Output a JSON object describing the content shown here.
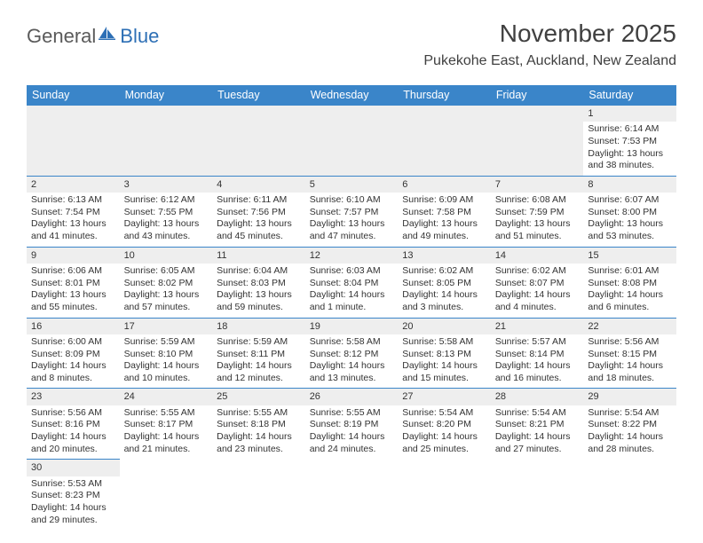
{
  "header": {
    "logo_part1": "General",
    "logo_part2": "Blue",
    "title": "November 2025",
    "subtitle": "Pukekohe East, Auckland, New Zealand"
  },
  "colors": {
    "header_bg": "#3a85c9",
    "header_fg": "#ffffff",
    "daynum_bg": "#eeeeee",
    "border": "#3a85c9",
    "text": "#333333",
    "logo_gray": "#5a5a5a",
    "logo_blue": "#2d6fb5"
  },
  "weekdays": [
    "Sunday",
    "Monday",
    "Tuesday",
    "Wednesday",
    "Thursday",
    "Friday",
    "Saturday"
  ],
  "days": [
    {
      "n": 1,
      "sunrise": "6:14 AM",
      "sunset": "7:53 PM",
      "daylight": "13 hours and 38 minutes."
    },
    {
      "n": 2,
      "sunrise": "6:13 AM",
      "sunset": "7:54 PM",
      "daylight": "13 hours and 41 minutes."
    },
    {
      "n": 3,
      "sunrise": "6:12 AM",
      "sunset": "7:55 PM",
      "daylight": "13 hours and 43 minutes."
    },
    {
      "n": 4,
      "sunrise": "6:11 AM",
      "sunset": "7:56 PM",
      "daylight": "13 hours and 45 minutes."
    },
    {
      "n": 5,
      "sunrise": "6:10 AM",
      "sunset": "7:57 PM",
      "daylight": "13 hours and 47 minutes."
    },
    {
      "n": 6,
      "sunrise": "6:09 AM",
      "sunset": "7:58 PM",
      "daylight": "13 hours and 49 minutes."
    },
    {
      "n": 7,
      "sunrise": "6:08 AM",
      "sunset": "7:59 PM",
      "daylight": "13 hours and 51 minutes."
    },
    {
      "n": 8,
      "sunrise": "6:07 AM",
      "sunset": "8:00 PM",
      "daylight": "13 hours and 53 minutes."
    },
    {
      "n": 9,
      "sunrise": "6:06 AM",
      "sunset": "8:01 PM",
      "daylight": "13 hours and 55 minutes."
    },
    {
      "n": 10,
      "sunrise": "6:05 AM",
      "sunset": "8:02 PM",
      "daylight": "13 hours and 57 minutes."
    },
    {
      "n": 11,
      "sunrise": "6:04 AM",
      "sunset": "8:03 PM",
      "daylight": "13 hours and 59 minutes."
    },
    {
      "n": 12,
      "sunrise": "6:03 AM",
      "sunset": "8:04 PM",
      "daylight": "14 hours and 1 minute."
    },
    {
      "n": 13,
      "sunrise": "6:02 AM",
      "sunset": "8:05 PM",
      "daylight": "14 hours and 3 minutes."
    },
    {
      "n": 14,
      "sunrise": "6:02 AM",
      "sunset": "8:07 PM",
      "daylight": "14 hours and 4 minutes."
    },
    {
      "n": 15,
      "sunrise": "6:01 AM",
      "sunset": "8:08 PM",
      "daylight": "14 hours and 6 minutes."
    },
    {
      "n": 16,
      "sunrise": "6:00 AM",
      "sunset": "8:09 PM",
      "daylight": "14 hours and 8 minutes."
    },
    {
      "n": 17,
      "sunrise": "5:59 AM",
      "sunset": "8:10 PM",
      "daylight": "14 hours and 10 minutes."
    },
    {
      "n": 18,
      "sunrise": "5:59 AM",
      "sunset": "8:11 PM",
      "daylight": "14 hours and 12 minutes."
    },
    {
      "n": 19,
      "sunrise": "5:58 AM",
      "sunset": "8:12 PM",
      "daylight": "14 hours and 13 minutes."
    },
    {
      "n": 20,
      "sunrise": "5:58 AM",
      "sunset": "8:13 PM",
      "daylight": "14 hours and 15 minutes."
    },
    {
      "n": 21,
      "sunrise": "5:57 AM",
      "sunset": "8:14 PM",
      "daylight": "14 hours and 16 minutes."
    },
    {
      "n": 22,
      "sunrise": "5:56 AM",
      "sunset": "8:15 PM",
      "daylight": "14 hours and 18 minutes."
    },
    {
      "n": 23,
      "sunrise": "5:56 AM",
      "sunset": "8:16 PM",
      "daylight": "14 hours and 20 minutes."
    },
    {
      "n": 24,
      "sunrise": "5:55 AM",
      "sunset": "8:17 PM",
      "daylight": "14 hours and 21 minutes."
    },
    {
      "n": 25,
      "sunrise": "5:55 AM",
      "sunset": "8:18 PM",
      "daylight": "14 hours and 23 minutes."
    },
    {
      "n": 26,
      "sunrise": "5:55 AM",
      "sunset": "8:19 PM",
      "daylight": "14 hours and 24 minutes."
    },
    {
      "n": 27,
      "sunrise": "5:54 AM",
      "sunset": "8:20 PM",
      "daylight": "14 hours and 25 minutes."
    },
    {
      "n": 28,
      "sunrise": "5:54 AM",
      "sunset": "8:21 PM",
      "daylight": "14 hours and 27 minutes."
    },
    {
      "n": 29,
      "sunrise": "5:54 AM",
      "sunset": "8:22 PM",
      "daylight": "14 hours and 28 minutes."
    },
    {
      "n": 30,
      "sunrise": "5:53 AM",
      "sunset": "8:23 PM",
      "daylight": "14 hours and 29 minutes."
    }
  ],
  "layout": {
    "first_weekday_index": 6,
    "weeks": 6,
    "cell_labels": {
      "sunrise": "Sunrise:",
      "sunset": "Sunset:",
      "daylight": "Daylight:"
    }
  }
}
